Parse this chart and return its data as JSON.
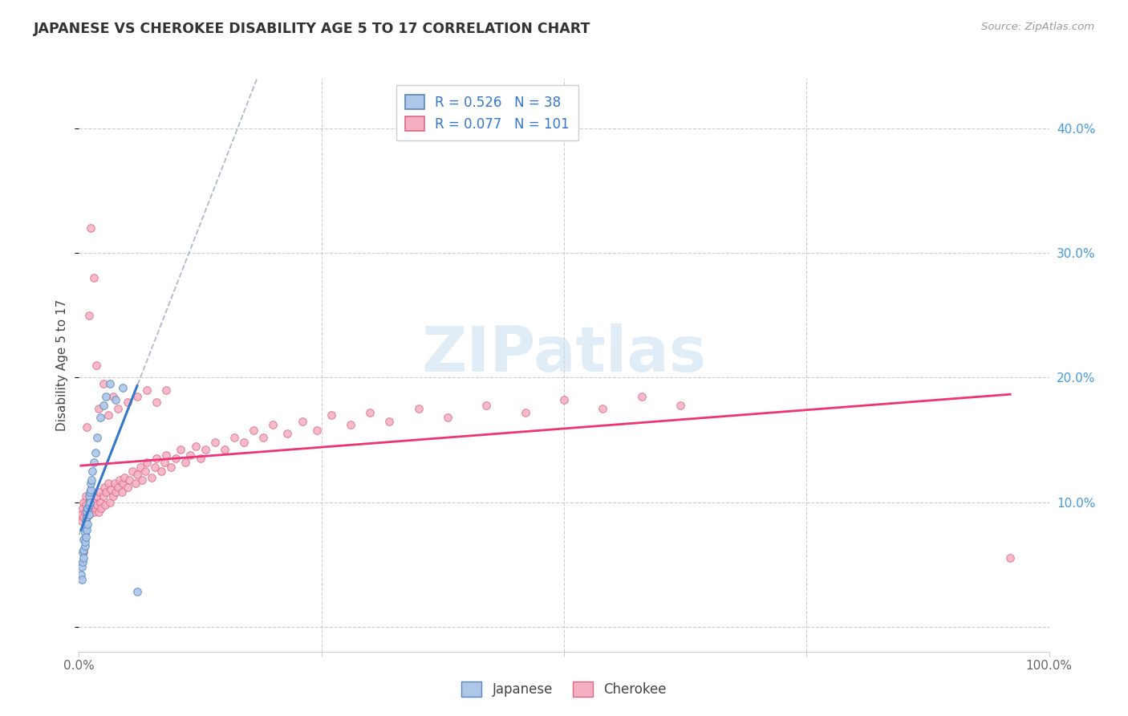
{
  "title": "JAPANESE VS CHEROKEE DISABILITY AGE 5 TO 17 CORRELATION CHART",
  "source_text": "Source: ZipAtlas.com",
  "ylabel": "Disability Age 5 to 17",
  "xlim": [
    0.0,
    1.0
  ],
  "ylim": [
    -0.02,
    0.44
  ],
  "yticks": [
    0.0,
    0.1,
    0.2,
    0.3,
    0.4
  ],
  "ytick_labels": [
    "",
    "10.0%",
    "20.0%",
    "30.0%",
    "40.0%"
  ],
  "watermark": "ZIPatlas",
  "japanese_color": "#aec6e8",
  "cherokee_color": "#f4afc0",
  "japanese_edge": "#5588bb",
  "cherokee_edge": "#dd6688",
  "japanese_line_color": "#3377cc",
  "cherokee_line_color": "#ee3377",
  "trendline_color": "#aabbcc",
  "R_japanese": 0.526,
  "N_japanese": 38,
  "R_cherokee": 0.077,
  "N_cherokee": 101,
  "japanese_x": [
    0.002,
    0.003,
    0.003,
    0.004,
    0.004,
    0.005,
    0.005,
    0.005,
    0.006,
    0.006,
    0.006,
    0.007,
    0.007,
    0.007,
    0.008,
    0.008,
    0.008,
    0.009,
    0.009,
    0.01,
    0.01,
    0.01,
    0.011,
    0.011,
    0.012,
    0.012,
    0.013,
    0.014,
    0.015,
    0.017,
    0.019,
    0.022,
    0.025,
    0.028,
    0.032,
    0.038,
    0.045,
    0.06
  ],
  "japanese_y": [
    0.042,
    0.038,
    0.048,
    0.052,
    0.06,
    0.055,
    0.062,
    0.07,
    0.065,
    0.075,
    0.068,
    0.08,
    0.072,
    0.085,
    0.078,
    0.088,
    0.092,
    0.082,
    0.095,
    0.09,
    0.098,
    0.105,
    0.1,
    0.108,
    0.11,
    0.115,
    0.118,
    0.125,
    0.132,
    0.14,
    0.152,
    0.168,
    0.178,
    0.185,
    0.195,
    0.182,
    0.192,
    0.028
  ],
  "cherokee_x": [
    0.002,
    0.003,
    0.004,
    0.005,
    0.005,
    0.006,
    0.007,
    0.007,
    0.008,
    0.009,
    0.01,
    0.011,
    0.012,
    0.013,
    0.014,
    0.015,
    0.016,
    0.017,
    0.018,
    0.019,
    0.02,
    0.021,
    0.022,
    0.023,
    0.025,
    0.026,
    0.027,
    0.028,
    0.03,
    0.032,
    0.033,
    0.035,
    0.037,
    0.038,
    0.04,
    0.042,
    0.044,
    0.045,
    0.047,
    0.05,
    0.052,
    0.055,
    0.058,
    0.06,
    0.063,
    0.065,
    0.068,
    0.07,
    0.075,
    0.078,
    0.08,
    0.085,
    0.088,
    0.09,
    0.095,
    0.1,
    0.105,
    0.11,
    0.115,
    0.12,
    0.125,
    0.13,
    0.14,
    0.15,
    0.16,
    0.17,
    0.18,
    0.19,
    0.2,
    0.215,
    0.23,
    0.245,
    0.26,
    0.28,
    0.3,
    0.32,
    0.35,
    0.38,
    0.42,
    0.46,
    0.5,
    0.54,
    0.58,
    0.62,
    0.005,
    0.008,
    0.01,
    0.012,
    0.015,
    0.018,
    0.02,
    0.025,
    0.03,
    0.035,
    0.04,
    0.05,
    0.06,
    0.07,
    0.08,
    0.09,
    0.96
  ],
  "cherokee_y": [
    0.09,
    0.085,
    0.095,
    0.088,
    0.1,
    0.092,
    0.098,
    0.105,
    0.088,
    0.095,
    0.09,
    0.102,
    0.095,
    0.098,
    0.108,
    0.092,
    0.1,
    0.095,
    0.105,
    0.098,
    0.092,
    0.108,
    0.1,
    0.095,
    0.105,
    0.112,
    0.098,
    0.108,
    0.115,
    0.1,
    0.11,
    0.105,
    0.115,
    0.108,
    0.112,
    0.118,
    0.108,
    0.115,
    0.12,
    0.112,
    0.118,
    0.125,
    0.115,
    0.122,
    0.128,
    0.118,
    0.125,
    0.132,
    0.12,
    0.128,
    0.135,
    0.125,
    0.132,
    0.138,
    0.128,
    0.135,
    0.142,
    0.132,
    0.138,
    0.145,
    0.135,
    0.142,
    0.148,
    0.142,
    0.152,
    0.148,
    0.158,
    0.152,
    0.162,
    0.155,
    0.165,
    0.158,
    0.17,
    0.162,
    0.172,
    0.165,
    0.175,
    0.168,
    0.178,
    0.172,
    0.182,
    0.175,
    0.185,
    0.178,
    0.06,
    0.16,
    0.25,
    0.32,
    0.28,
    0.21,
    0.175,
    0.195,
    0.17,
    0.185,
    0.175,
    0.18,
    0.185,
    0.19,
    0.18,
    0.19,
    0.055
  ]
}
